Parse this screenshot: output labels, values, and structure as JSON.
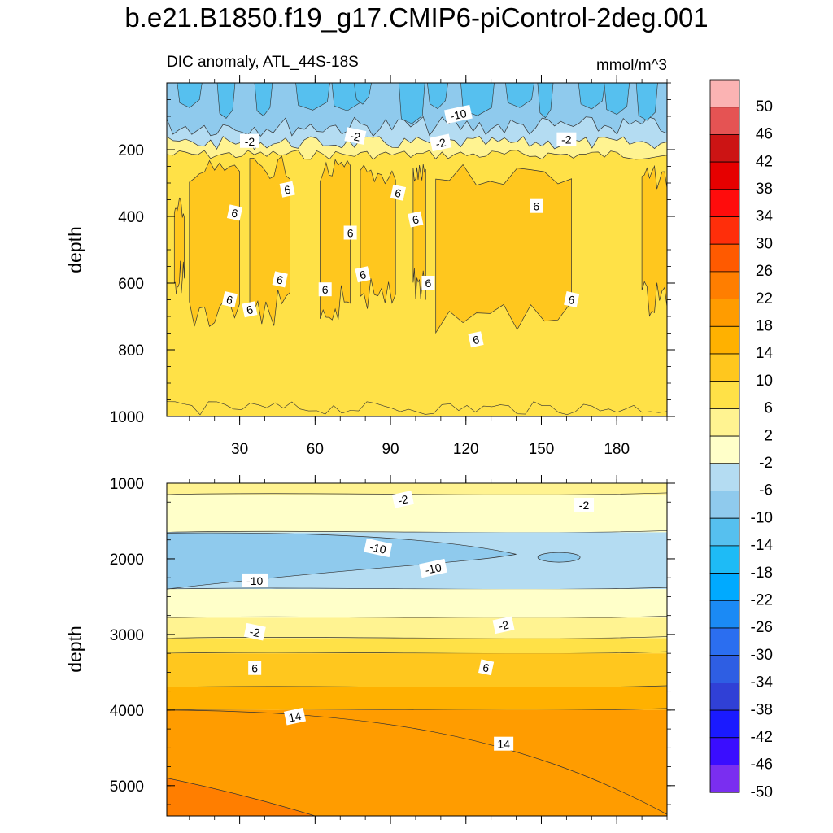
{
  "figure": {
    "title": "b.e21.B1850.f19_g17.CMIP6-piControl-2deg.001"
  },
  "chart_data": [
    {
      "type": "heatmap",
      "panel": "upper",
      "title": "DIC anomaly, ATL_44S-18S",
      "units": "mmol/m^3",
      "xlabel": "",
      "ylabel": "depth",
      "xlim": [
        1,
        200
      ],
      "ylim": [
        1000,
        0
      ],
      "xticks": [
        30,
        60,
        90,
        120,
        150,
        180
      ],
      "yticks": [
        200,
        400,
        600,
        800,
        1000
      ],
      "surface_band": {
        "top_value": -14,
        "mid_value": -10,
        "lower_value": -6,
        "band_bottom_depth": 200
      },
      "contour_labels": [
        {
          "text": "-10",
          "x": 117,
          "y": 95
        },
        {
          "text": "-2",
          "x": 34,
          "y": 175
        },
        {
          "text": "-2",
          "x": 76,
          "y": 160
        },
        {
          "text": "-2",
          "x": 110,
          "y": 180
        },
        {
          "text": "-2",
          "x": 160,
          "y": 170
        },
        {
          "text": "6",
          "x": 28,
          "y": 390
        },
        {
          "text": "6",
          "x": 49,
          "y": 320
        },
        {
          "text": "6",
          "x": 74,
          "y": 450
        },
        {
          "text": "6",
          "x": 93,
          "y": 330
        },
        {
          "text": "6",
          "x": 100,
          "y": 410
        },
        {
          "text": "6",
          "x": 148,
          "y": 370
        },
        {
          "text": "6",
          "x": 46,
          "y": 590
        },
        {
          "text": "6",
          "x": 79,
          "y": 575
        },
        {
          "text": "6",
          "x": 105,
          "y": 600
        },
        {
          "text": "6",
          "x": 26,
          "y": 650
        },
        {
          "text": "6",
          "x": 34,
          "y": 680
        },
        {
          "text": "6",
          "x": 64,
          "y": 620
        },
        {
          "text": "6",
          "x": 162,
          "y": 650
        },
        {
          "text": "6",
          "x": 124,
          "y": 770
        }
      ],
      "regions_value_6": [
        {
          "x_start": 4,
          "x_end": 8,
          "depth_top": 360,
          "depth_bottom": 640
        },
        {
          "x_start": 10,
          "x_end": 30,
          "depth_top": 250,
          "depth_bottom": 730
        },
        {
          "x_start": 34,
          "x_end": 50,
          "depth_top": 240,
          "depth_bottom": 730
        },
        {
          "x_start": 62,
          "x_end": 74,
          "depth_top": 250,
          "depth_bottom": 720
        },
        {
          "x_start": 78,
          "x_end": 92,
          "depth_top": 260,
          "depth_bottom": 690
        },
        {
          "x_start": 99,
          "x_end": 104,
          "depth_top": 260,
          "depth_bottom": 650
        },
        {
          "x_start": 108,
          "x_end": 162,
          "depth_top": 260,
          "depth_bottom": 760
        },
        {
          "x_start": 190,
          "x_end": 200,
          "depth_top": 270,
          "depth_bottom": 700
        }
      ]
    },
    {
      "type": "heatmap",
      "panel": "lower",
      "title": "",
      "units": "mmol/m^3",
      "xlabel": "",
      "ylabel": "depth",
      "xlim": [
        1,
        200
      ],
      "ylim": [
        5400,
        1000
      ],
      "yticks": [
        1000,
        2000,
        3000,
        4000,
        5000
      ],
      "layers": [
        {
          "from_depth": 1000,
          "to_depth": 1150,
          "value": 0
        },
        {
          "from_depth": 1150,
          "to_depth": 1650,
          "value": -4
        },
        {
          "from_depth": 1650,
          "to_depth": 2400,
          "value": -8
        },
        {
          "from_depth": 2400,
          "to_depth": 2780,
          "value": -4
        },
        {
          "from_depth": 2780,
          "to_depth": 3050,
          "value": 0
        },
        {
          "from_depth": 3050,
          "to_depth": 3250,
          "value": 4
        },
        {
          "from_depth": 3250,
          "to_depth": 3700,
          "value": 8
        },
        {
          "from_depth": 3700,
          "to_depth": 4000,
          "value": 12
        },
        {
          "from_depth": 4000,
          "to_depth": 5400,
          "value": 16
        }
      ],
      "core_minus14": {
        "x_start": 1,
        "x_end": 140,
        "depth_top": 1660,
        "depth_bottom": 2400
      },
      "deep_20_corner": {
        "x_end": 60,
        "depth_top": 4900
      },
      "contour_labels": [
        {
          "text": "-2",
          "x": 95,
          "y": 1220
        },
        {
          "text": "-2",
          "x": 167,
          "y": 1290
        },
        {
          "text": "-10",
          "x": 85,
          "y": 1860
        },
        {
          "text": "-10",
          "x": 107,
          "y": 2130
        },
        {
          "text": "-10",
          "x": 36,
          "y": 2290
        },
        {
          "text": "-2",
          "x": 36,
          "y": 2970
        },
        {
          "text": "-2",
          "x": 135,
          "y": 2880
        },
        {
          "text": "6",
          "x": 36,
          "y": 3450
        },
        {
          "text": "6",
          "x": 128,
          "y": 3440
        },
        {
          "text": "14",
          "x": 52,
          "y": 4090
        },
        {
          "text": "14",
          "x": 135,
          "y": 4450
        }
      ]
    }
  ],
  "colorbar": {
    "labels": [
      "50",
      "46",
      "42",
      "38",
      "34",
      "30",
      "26",
      "22",
      "18",
      "14",
      "10",
      "6",
      "2",
      "-2",
      "-6",
      "-10",
      "-14",
      "-18",
      "-22",
      "-26",
      "-30",
      "-34",
      "-38",
      "-42",
      "-46",
      "-50"
    ],
    "levels": [
      -50,
      -46,
      -42,
      -38,
      -34,
      -30,
      -26,
      -22,
      -18,
      -14,
      -10,
      -6,
      -2,
      2,
      6,
      10,
      14,
      18,
      22,
      26,
      30,
      34,
      38,
      42,
      46,
      50
    ],
    "colors_top_to_bottom": [
      "#fbb3b3",
      "#e55353",
      "#cc1414",
      "#e60000",
      "#ff0c0c",
      "#ff2e0a",
      "#ff5a00",
      "#ff7e00",
      "#ff9c00",
      "#ffb100",
      "#ffc71e",
      "#ffe147",
      "#fff391",
      "#ffffc9",
      "#b4dcf2",
      "#8fcaed",
      "#56c0ef",
      "#1ebbf6",
      "#00aaff",
      "#1b8af5",
      "#2b6ef0",
      "#2e5ee3",
      "#3040d6",
      "#1a1aff",
      "#3a0dff",
      "#7a2ef0"
    ]
  }
}
